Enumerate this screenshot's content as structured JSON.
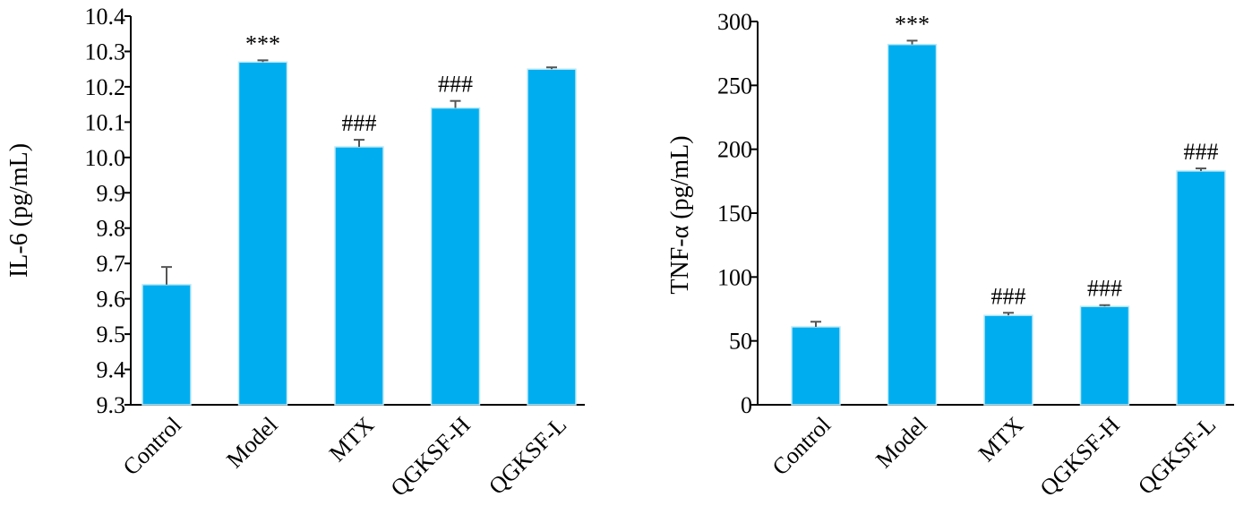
{
  "chart_data": [
    {
      "type": "bar",
      "categories": [
        "Control",
        "Model",
        "MTX",
        "QGKSF-H",
        "QGKSF-L"
      ],
      "values": [
        9.64,
        10.27,
        10.03,
        10.14,
        10.25
      ],
      "errors": [
        0.05,
        0.005,
        0.02,
        0.02,
        0.005
      ],
      "annotations": [
        "",
        "***",
        "###",
        "###",
        ""
      ],
      "ylabel": "IL-6 (pg/mL)",
      "ylim": [
        9.3,
        10.4
      ],
      "yticks": [
        9.3,
        9.4,
        9.5,
        9.6,
        9.7,
        9.8,
        9.9,
        10.0,
        10.1,
        10.2,
        10.3,
        10.4
      ],
      "ytick_labels": [
        "9.3",
        "9.4",
        "9.5",
        "9.6",
        "9.7",
        "9.8",
        "9.9",
        "10.0",
        "10.1",
        "10.2",
        "10.3",
        "10.4"
      ],
      "color": "#00aeef",
      "grid": false
    },
    {
      "type": "bar",
      "categories": [
        "Control",
        "Model",
        "MTX",
        "QGKSF-H",
        "QGKSF-L"
      ],
      "values": [
        61,
        282,
        70,
        77,
        183
      ],
      "errors": [
        4,
        3,
        2,
        1,
        2
      ],
      "annotations": [
        "",
        "***",
        "###",
        "###",
        "###"
      ],
      "ylabel": "TNF-α (pg/mL)",
      "ylim": [
        0,
        300
      ],
      "yticks": [
        0,
        50,
        100,
        150,
        200,
        250,
        300
      ],
      "ytick_labels": [
        "0",
        "50",
        "100",
        "150",
        "200",
        "250",
        "300"
      ],
      "color": "#00aeef",
      "grid": false
    }
  ]
}
